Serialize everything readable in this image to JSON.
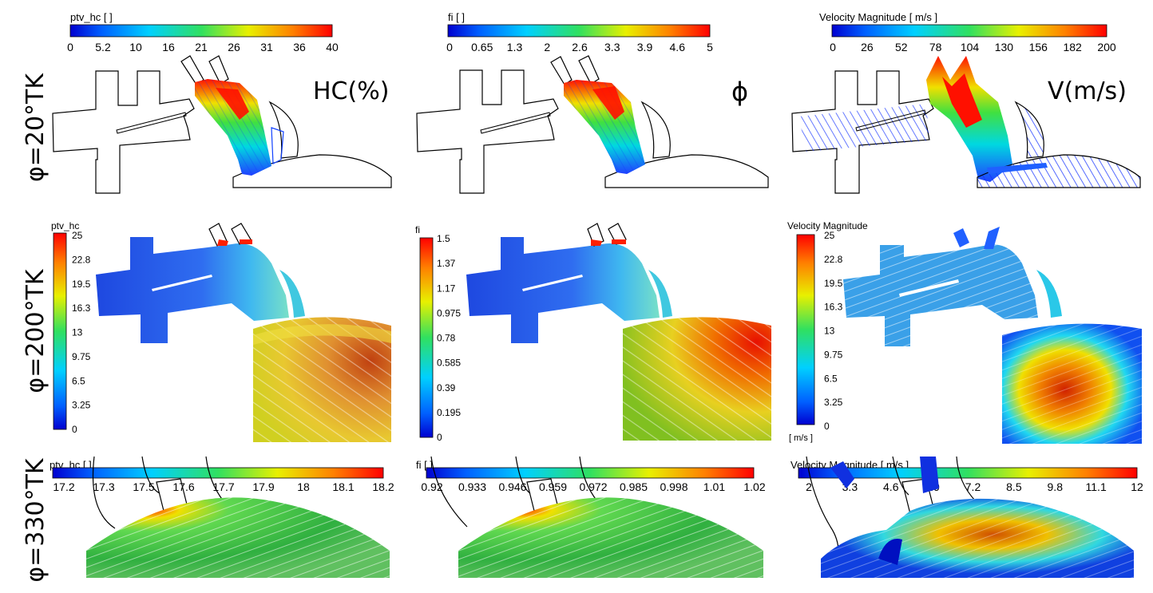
{
  "rows": [
    {
      "label": "φ=20°TK"
    },
    {
      "label": "φ=200°TK"
    },
    {
      "label": "φ=330°TK"
    }
  ],
  "column_labels": [
    "HC(%)",
    "ϕ",
    "V(m/s)"
  ],
  "colorbars": {
    "r1_hc": {
      "title": "ptv_hc [ ]",
      "ticks": [
        "0",
        "5.2",
        "10",
        "16",
        "21",
        "26",
        "31",
        "36",
        "40"
      ]
    },
    "r1_fi": {
      "title": "fi [ ]",
      "ticks": [
        "0",
        "0.65",
        "1.3",
        "2",
        "2.6",
        "3.3",
        "3.9",
        "4.6",
        "5"
      ]
    },
    "r1_vel": {
      "title": "Velocity Magnitude [ m/s ]",
      "ticks": [
        "0",
        "26",
        "52",
        "78",
        "104",
        "130",
        "156",
        "182",
        "200"
      ]
    },
    "r2_hc": {
      "title": "ptv_hc",
      "ticks": [
        "25",
        "22.8",
        "19.5",
        "16.3",
        "13",
        "9.75",
        "6.5",
        "3.25",
        "0"
      ]
    },
    "r2_fi": {
      "title": "fi",
      "ticks": [
        "1.5",
        "1.37",
        "1.17",
        "0.975",
        "0.78",
        "0.585",
        "0.39",
        "0.195",
        "0"
      ]
    },
    "r2_vel": {
      "title": "Velocity Magnitude",
      "unit": "[ m/s ]",
      "ticks": [
        "25",
        "22.8",
        "19.5",
        "16.3",
        "13",
        "9.75",
        "6.5",
        "3.25",
        "0"
      ]
    },
    "r3_hc": {
      "title": "ptv_hc [ ]",
      "ticks": [
        "17.2",
        "17.3",
        "17.5",
        "17.6",
        "17.7",
        "17.9",
        "18",
        "18.1",
        "18.2"
      ]
    },
    "r3_fi": {
      "title": "fi [ ]",
      "ticks": [
        "0.92",
        "0.933",
        "0.946",
        "0.959",
        "0.972",
        "0.985",
        "0.998",
        "1.01",
        "1.02"
      ]
    },
    "r3_vel": {
      "title": "Velocity Magnitude [ m/s ]",
      "ticks": [
        "2",
        "3.3",
        "4.6",
        "5.9",
        "7.2",
        "8.5",
        "9.8",
        "11.1",
        "12"
      ]
    }
  }
}
